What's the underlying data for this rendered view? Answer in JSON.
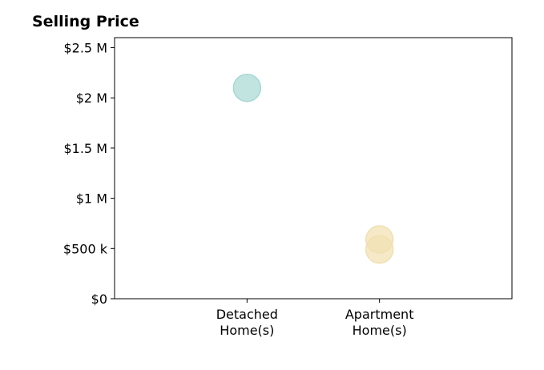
{
  "chart_data": {
    "type": "scatter",
    "title": "Selling Price",
    "xlabel": "",
    "ylabel": "",
    "categories": [
      [
        "Detached",
        "Home(s)"
      ],
      [
        "Apartment",
        "Home(s)"
      ]
    ],
    "x_range": [
      -1,
      2
    ],
    "ylim": [
      0,
      2600000
    ],
    "y_ticks": [
      {
        "value": 0,
        "label": "$0"
      },
      {
        "value": 500000,
        "label": "$500 k"
      },
      {
        "value": 1000000,
        "label": "$1 M"
      },
      {
        "value": 1500000,
        "label": "$1.5 M"
      },
      {
        "value": 2000000,
        "label": "$2 M"
      },
      {
        "value": 2500000,
        "label": "$2.5 M"
      }
    ],
    "points": [
      {
        "category": 0,
        "value": 2100000,
        "color": "#a8d8d4"
      },
      {
        "category": 1,
        "value": 590000,
        "color": "#f1e0b0"
      },
      {
        "category": 1,
        "value": 490000,
        "color": "#f1e0b0"
      }
    ],
    "grid": false,
    "legend": "none"
  }
}
